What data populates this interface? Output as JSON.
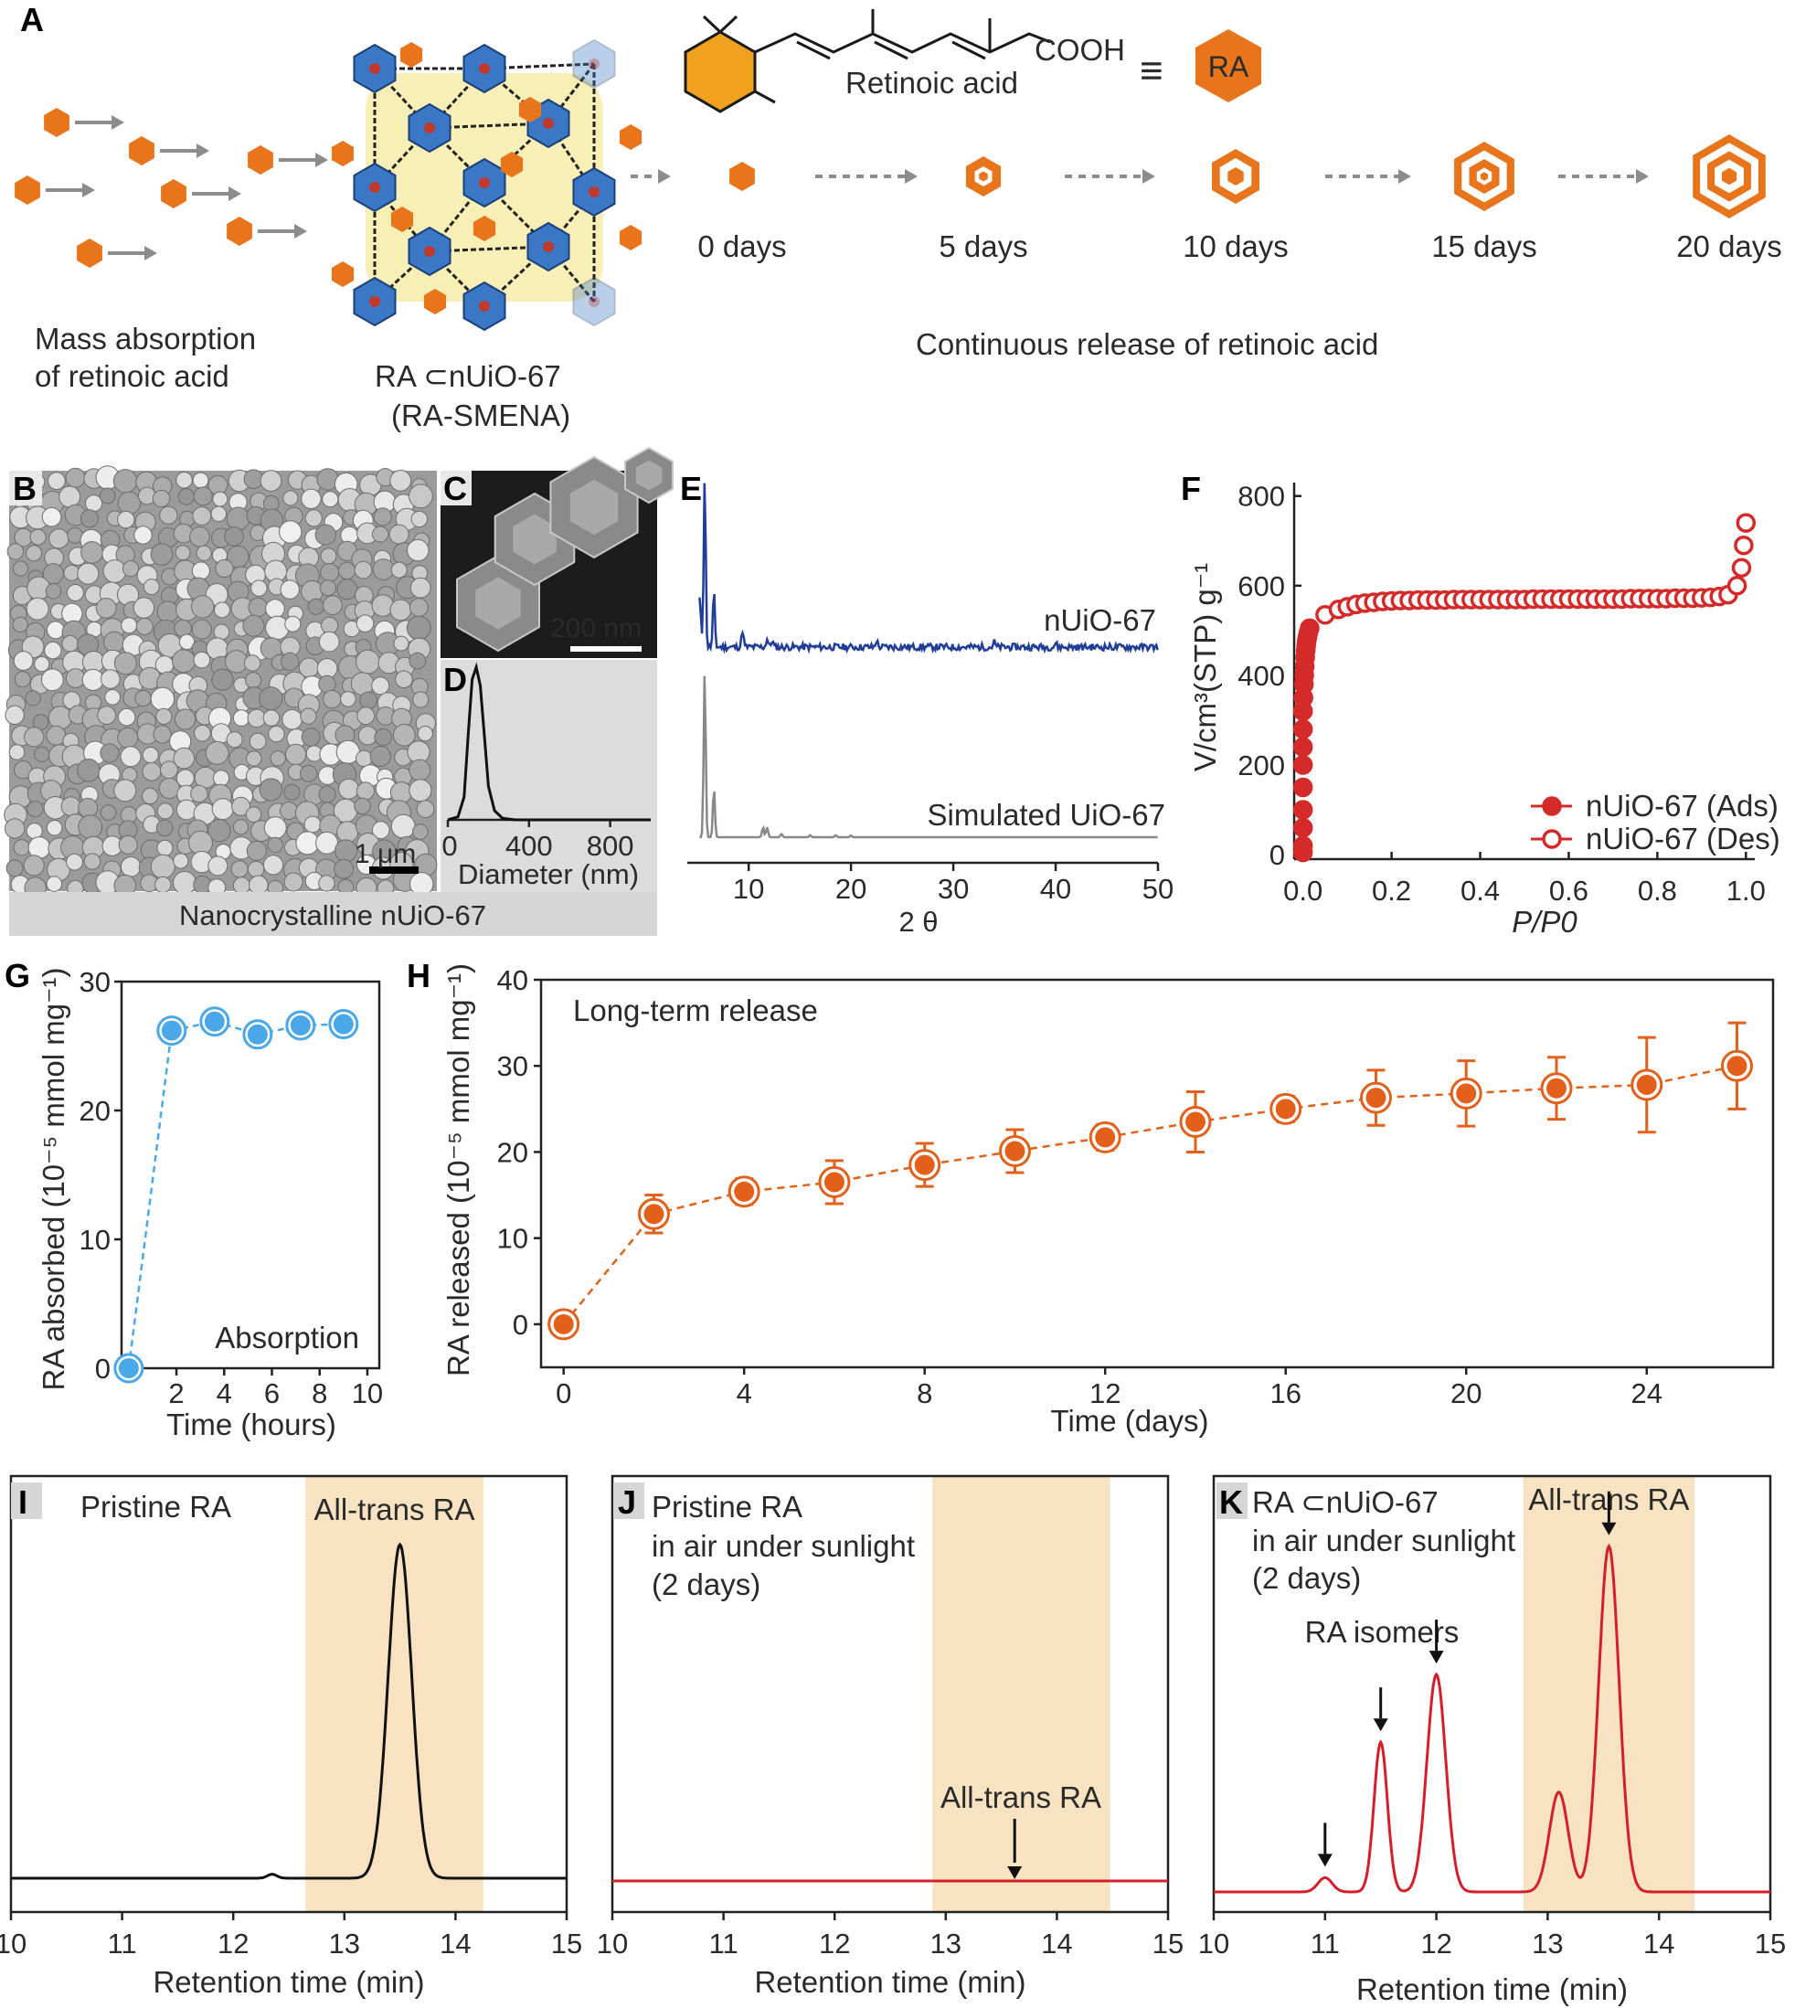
{
  "panel_letters": {
    "A": "A",
    "B": "B",
    "C": "C",
    "D": "D",
    "E": "E",
    "F": "F",
    "G": "G",
    "H": "H",
    "I": "I",
    "J": "J",
    "K": "K"
  },
  "panel_a": {
    "molecule_name": "Retinoic acid",
    "cooh": "COOH",
    "equiv": "≡",
    "ra_badge": "RA",
    "mass_absorption_line1": "Mass absorption",
    "mass_absorption_line2": "of retinoic acid",
    "framework_line1": "RA ⊂nUiO-67",
    "framework_line2": "(RA-SMENA)",
    "release_caption": "Continuous release of retinoic acid",
    "stages": [
      {
        "label": "0 days",
        "rings": 1
      },
      {
        "label": "5 days",
        "rings": 2
      },
      {
        "label": "10 days",
        "rings": 3
      },
      {
        "label": "15 days",
        "rings": 4
      },
      {
        "label": "20 days",
        "rings": 5
      }
    ],
    "colors": {
      "orange": "#e8741c",
      "zr_blue": "#3a78c6",
      "aryl_yellow": "#f3e27a",
      "arrow": "#8c8c8c",
      "hex_core": "#f0a21f"
    }
  },
  "panel_b": {
    "scale": "1 μm",
    "caption": "Nanocrystalline nUiO-67"
  },
  "panel_c": {
    "scale": "200 nm"
  },
  "chart_data": [
    {
      "panel": "D",
      "type": "line",
      "xlabel": "Diameter (nm)",
      "xticks": [
        0,
        400,
        800
      ],
      "xlim": [
        0,
        1000
      ],
      "ylim": [
        0,
        1
      ],
      "series": [
        {
          "name": "size distribution",
          "x": [
            0,
            50,
            80,
            100,
            120,
            140,
            160,
            180,
            200,
            230,
            270,
            330,
            500,
            1000
          ],
          "y": [
            0,
            0.02,
            0.15,
            0.55,
            0.92,
            1.0,
            0.88,
            0.55,
            0.22,
            0.06,
            0.01,
            0,
            0,
            0
          ]
        }
      ]
    },
    {
      "panel": "E",
      "type": "line",
      "xlabel": "2 θ",
      "xticks": [
        10,
        20,
        30,
        40,
        50
      ],
      "xlim": [
        4,
        50
      ],
      "series": [
        {
          "name": "nUiO-67",
          "color": "#1f3d99",
          "peaks": [
            [
              5.7,
              1.0
            ],
            [
              6.6,
              0.32
            ],
            [
              9.4,
              0.1
            ],
            [
              11.8,
              0.05
            ],
            [
              12.3,
              0.04
            ],
            [
              22.5,
              0.04
            ],
            [
              34,
              0.03
            ],
            [
              40,
              0.025
            ]
          ],
          "noise": 0.02
        },
        {
          "name": "Simulated UiO-67",
          "color": "#888888",
          "peaks": [
            [
              5.7,
              1.0
            ],
            [
              6.6,
              0.3
            ],
            [
              11.4,
              0.06
            ],
            [
              11.8,
              0.06
            ],
            [
              13.2,
              0.02
            ],
            [
              16.0,
              0.012
            ],
            [
              18.5,
              0.012
            ],
            [
              20.0,
              0.01
            ]
          ],
          "noise": 0.0
        }
      ]
    },
    {
      "panel": "F",
      "type": "scatter",
      "xlabel": "P/P0",
      "ylabel": "V/cm³(STP) g⁻¹",
      "xticks": [
        0.0,
        0.2,
        0.4,
        0.6,
        0.8,
        1.0
      ],
      "yticks": [
        0,
        200,
        400,
        600,
        800
      ],
      "xlim": [
        -0.02,
        1.02
      ],
      "ylim": [
        -10,
        830
      ],
      "legend": [
        "nUiO-67 (Ads)",
        "nUiO-67 (Des)"
      ],
      "series": [
        {
          "name": "nUiO-67 (Ads)",
          "color": "#d42a2a",
          "filled": true,
          "x": [
            0,
            0,
            0,
            0,
            0,
            0,
            0,
            0,
            0,
            0.001,
            0.002,
            0.003,
            0.004,
            0.005,
            0.006,
            0.007,
            0.008,
            0.01,
            0.012,
            0.015
          ],
          "y": [
            5,
            20,
            60,
            100,
            150,
            200,
            240,
            280,
            320,
            350,
            380,
            400,
            420,
            440,
            455,
            465,
            475,
            485,
            495,
            505
          ]
        },
        {
          "name": "nUiO-67 (Des)",
          "color": "#d42a2a",
          "filled": false,
          "x": [
            0.05,
            0.08,
            0.1,
            0.12,
            0.14,
            0.16,
            0.18,
            0.2,
            0.22,
            0.24,
            0.26,
            0.28,
            0.3,
            0.32,
            0.34,
            0.36,
            0.38,
            0.4,
            0.42,
            0.44,
            0.46,
            0.48,
            0.5,
            0.52,
            0.54,
            0.56,
            0.58,
            0.6,
            0.62,
            0.64,
            0.66,
            0.68,
            0.7,
            0.72,
            0.74,
            0.76,
            0.78,
            0.8,
            0.82,
            0.84,
            0.86,
            0.88,
            0.9,
            0.92,
            0.94,
            0.96,
            0.98,
            0.99,
            0.995,
            1.0
          ],
          "y": [
            535,
            547,
            553,
            558,
            561,
            563,
            565,
            566,
            567,
            567,
            568,
            568,
            568,
            568,
            569,
            569,
            569,
            569,
            569,
            569,
            569,
            569,
            569,
            570,
            570,
            570,
            570,
            570,
            570,
            570,
            570,
            570,
            570,
            570,
            571,
            571,
            571,
            571,
            571,
            572,
            572,
            572,
            573,
            574,
            576,
            580,
            600,
            640,
            690,
            740
          ]
        }
      ]
    },
    {
      "panel": "G",
      "type": "scatter",
      "title": "Absorption",
      "xlabel": "Time (hours)",
      "ylabel": "RA absorbed (10⁻⁵ mmol mg⁻¹)",
      "xticks": [
        2,
        4,
        6,
        8,
        10
      ],
      "yticks": [
        0,
        10,
        20,
        30
      ],
      "xlim": [
        -0.3,
        10.5
      ],
      "ylim": [
        0,
        30
      ],
      "series": [
        {
          "name": "RA absorbed",
          "color": "#4aa8e8",
          "x": [
            0,
            1.8,
            3.6,
            5.4,
            7.2,
            9.0
          ],
          "y": [
            0,
            26.2,
            26.9,
            25.9,
            26.6,
            26.7
          ]
        }
      ]
    },
    {
      "panel": "H",
      "type": "scatter",
      "title": "Long-term release",
      "xlabel": "Time (days)",
      "ylabel": "RA released (10⁻⁵ mmol mg⁻¹)",
      "xticks": [
        0,
        4,
        8,
        12,
        16,
        20,
        24
      ],
      "yticks": [
        0,
        10,
        20,
        30,
        40
      ],
      "xlim": [
        -0.5,
        26.8
      ],
      "ylim": [
        -5,
        40
      ],
      "series": [
        {
          "name": "RA released",
          "color": "#e2601a",
          "x": [
            0,
            2,
            4,
            6,
            8,
            10,
            12,
            14,
            16,
            18,
            20,
            22,
            24,
            26
          ],
          "y": [
            0,
            12.8,
            15.4,
            16.5,
            18.5,
            20.1,
            21.7,
            23.5,
            25.0,
            26.3,
            26.8,
            27.4,
            27.8,
            30.0
          ],
          "err": [
            0,
            2.2,
            1.5,
            2.5,
            2.5,
            2.5,
            1.5,
            3.5,
            1.5,
            3.2,
            3.8,
            3.6,
            5.5,
            5.0
          ]
        }
      ]
    },
    {
      "panel": "I",
      "type": "line",
      "title": "Pristine RA",
      "band_label": "All-trans RA",
      "xlabel": "Retention time (min)",
      "xticks": [
        10,
        11,
        12,
        13,
        14,
        15
      ],
      "xlim": [
        10,
        15
      ],
      "band": [
        12.65,
        14.25
      ],
      "series": [
        {
          "name": "Pristine RA",
          "color": "#111111",
          "peaks": [
            [
              12.35,
              0.012,
              0.06
            ],
            [
              13.5,
              1.0,
              0.15
            ]
          ]
        }
      ]
    },
    {
      "panel": "J",
      "type": "line",
      "title_line1": "Pristine RA",
      "title_line2": "in air under sunlight",
      "title_line3": "(2 days)",
      "annotation": "All-trans RA",
      "annotation_x": 13.62,
      "xlabel": "Retention time (min)",
      "xticks": [
        10,
        11,
        12,
        13,
        14,
        15
      ],
      "xlim": [
        10,
        15
      ],
      "band": [
        12.88,
        14.48
      ],
      "series": [
        {
          "name": "Pristine RA (sunlight)",
          "color": "#d41f2b",
          "peaks": []
        }
      ]
    },
    {
      "panel": "K",
      "type": "line",
      "title_line1": "RA ⊂nUiO-67",
      "title_line2": "in air under sunlight",
      "title_line3": "(2 days)",
      "band_label": "All-trans RA",
      "isomer_label": "RA isomers",
      "arrow_x": [
        11.0,
        11.5,
        12.0,
        13.55
      ],
      "xlabel": "Retention time (min)",
      "xticks": [
        10,
        11,
        12,
        13,
        14,
        15
      ],
      "xlim": [
        10,
        15
      ],
      "band": [
        12.78,
        14.32
      ],
      "series": [
        {
          "name": "RA ⊂nUiO-67 (sunlight)",
          "color": "#d41f2b",
          "peaks": [
            [
              11.0,
              0.04,
              0.09
            ],
            [
              11.5,
              0.42,
              0.085
            ],
            [
              12.0,
              0.61,
              0.12
            ],
            [
              13.1,
              0.28,
              0.12
            ],
            [
              13.55,
              0.97,
              0.13
            ]
          ]
        }
      ]
    }
  ]
}
